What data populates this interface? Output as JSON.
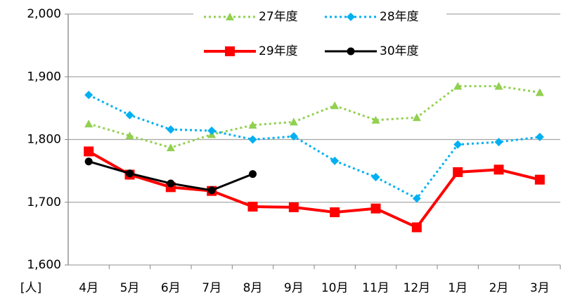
{
  "chart_data": {
    "type": "line",
    "y_label": "[人]",
    "categories": [
      "4月",
      "5月",
      "6月",
      "7月",
      "8月",
      "9月",
      "10月",
      "11月",
      "12月",
      "1月",
      "2月",
      "3月"
    ],
    "series": [
      {
        "name": "27年度",
        "color": "#92d050",
        "dash": "dotted",
        "marker": "triangle",
        "values": [
          1825,
          1806,
          1787,
          1808,
          1823,
          1828,
          1854,
          1831,
          1835,
          1885,
          1885,
          1875
        ]
      },
      {
        "name": "28年度",
        "color": "#00b0f0",
        "dash": "dotted",
        "marker": "diamond",
        "values": [
          1871,
          1839,
          1816,
          1814,
          1800,
          1805,
          1766,
          1740,
          1706,
          1792,
          1796,
          1804
        ]
      },
      {
        "name": "29年度",
        "color": "#ff0000",
        "dash": "solid",
        "marker": "square",
        "values": [
          1781,
          1744,
          1724,
          1718,
          1693,
          1692,
          1684,
          1690,
          1660,
          1748,
          1752,
          1736
        ]
      },
      {
        "name": "30年度",
        "color": "#000000",
        "dash": "solid",
        "marker": "circle",
        "values": [
          1765,
          1746,
          1730,
          1719,
          1745,
          null,
          null,
          null,
          null,
          null,
          null,
          null
        ]
      }
    ],
    "ylim": [
      1600,
      2000
    ],
    "yticks": [
      {
        "value": 1600,
        "label": "1,600"
      },
      {
        "value": 1700,
        "label": "1,700"
      },
      {
        "value": 1800,
        "label": "1,800"
      },
      {
        "value": 1900,
        "label": "1,900"
      },
      {
        "value": 2000,
        "label": "2,000"
      }
    ],
    "grid": true
  }
}
